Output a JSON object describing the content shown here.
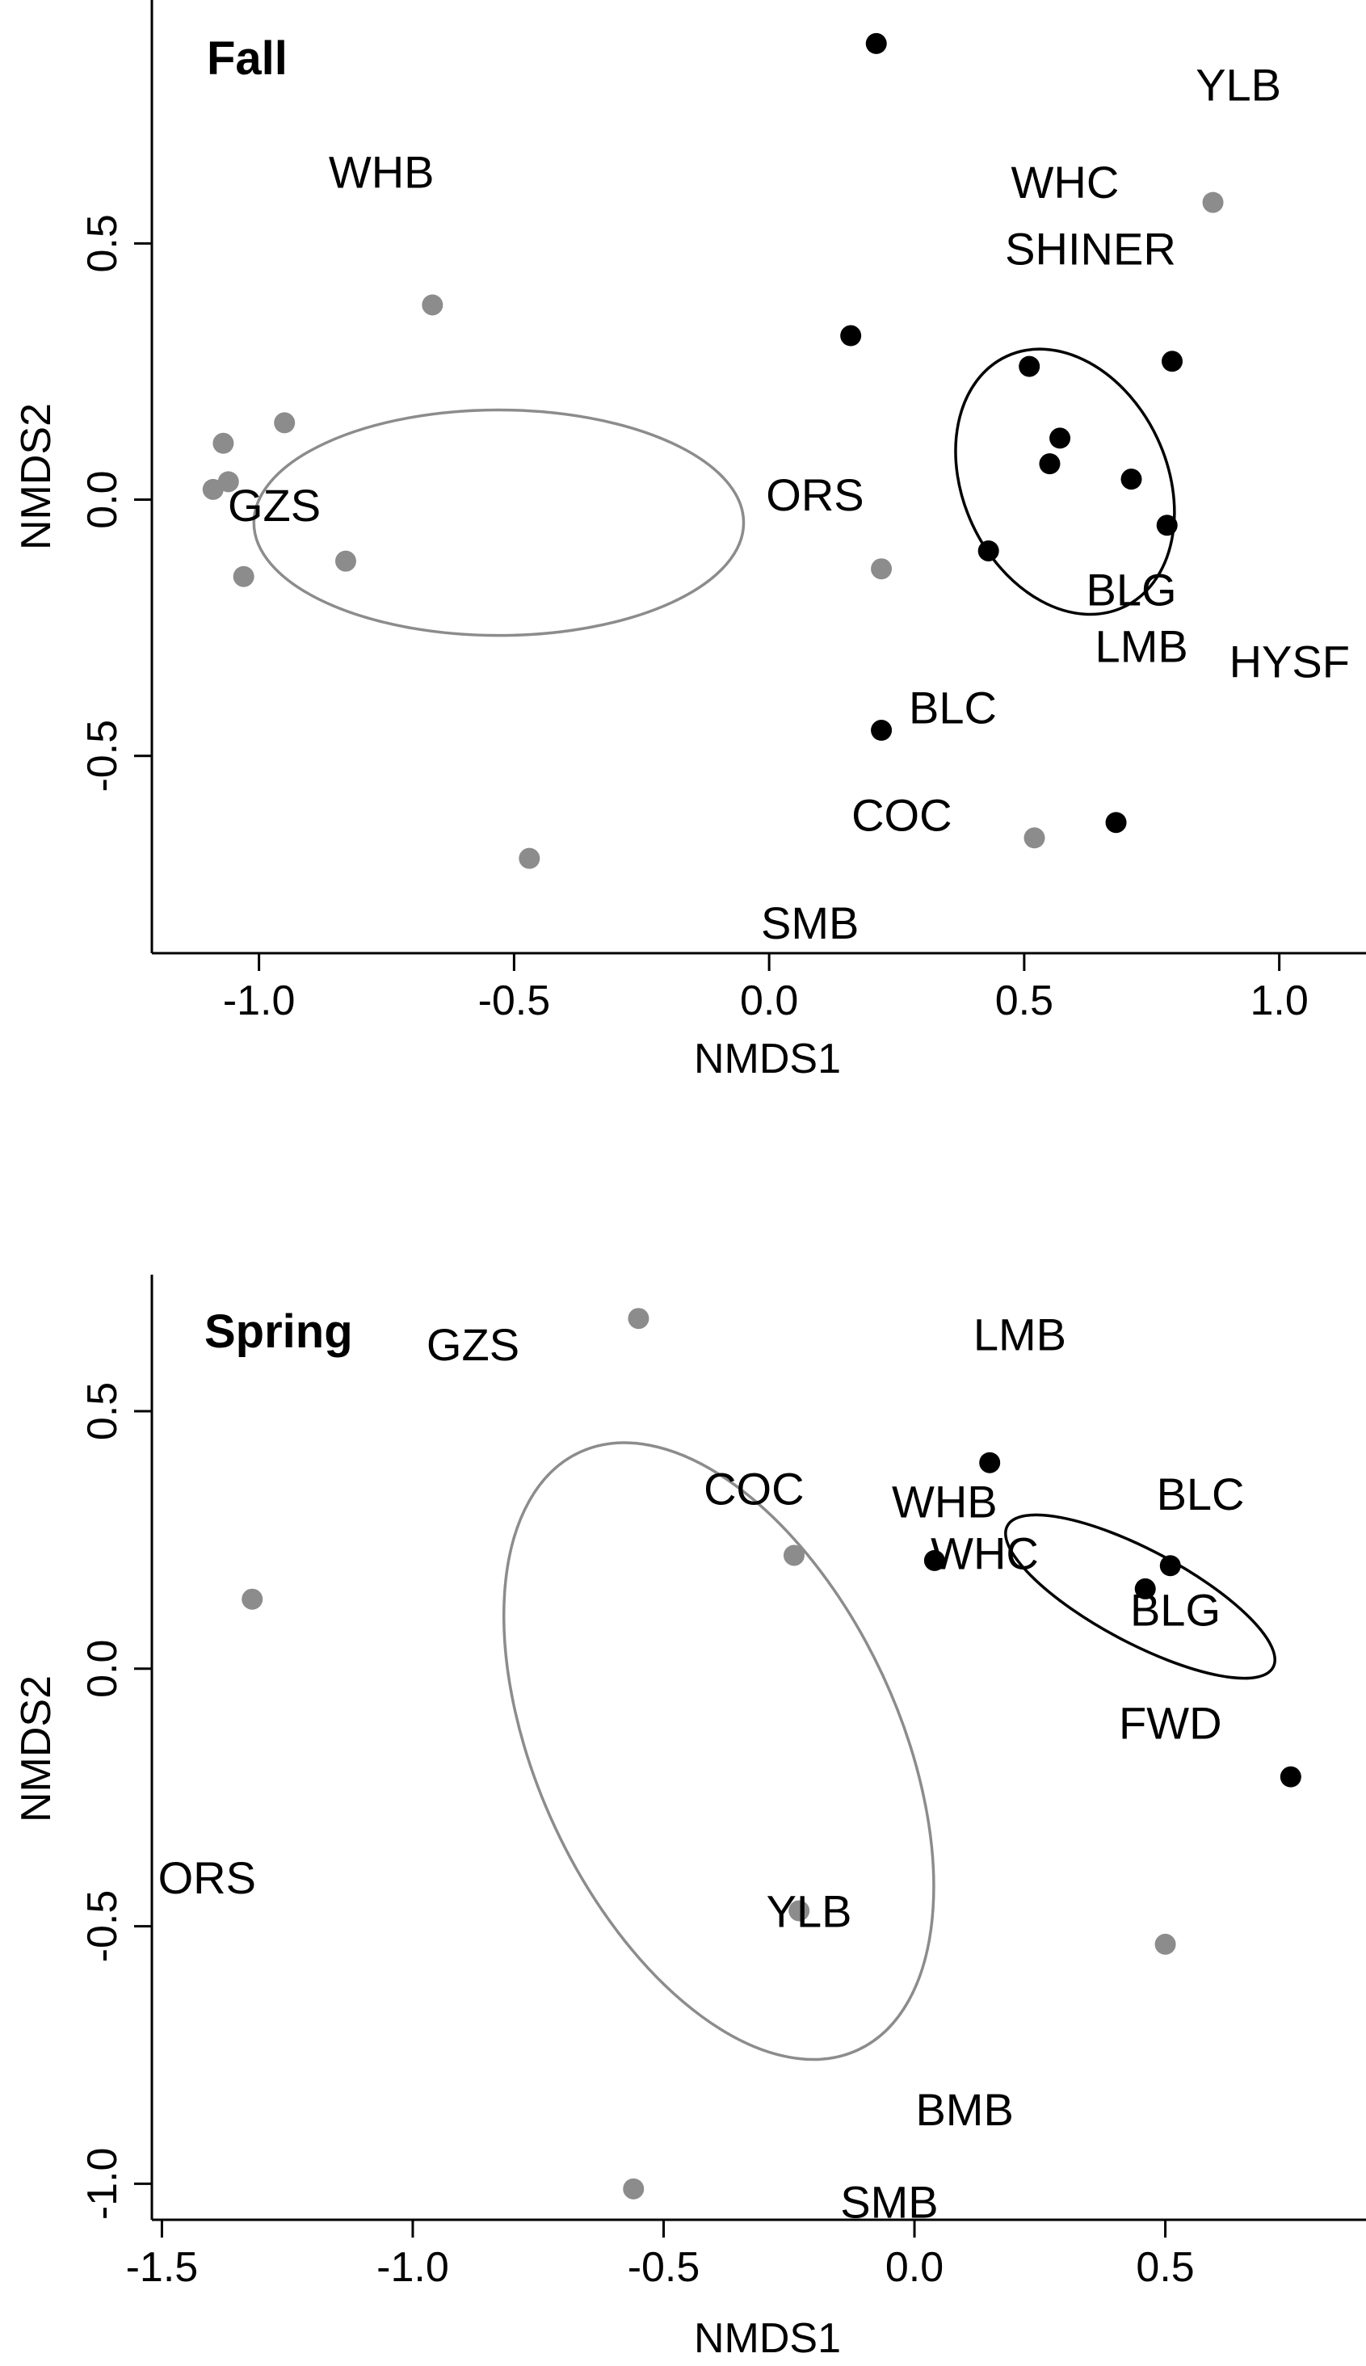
{
  "colors": {
    "black_group": "#000000",
    "gray_group": "#8c8c8c",
    "axis": "#000000"
  },
  "chart_data": [
    {
      "type": "scatter",
      "title": "Fall",
      "xlabel": "NMDS1",
      "ylabel": "NMDS2",
      "xlim": [
        -1.21,
        1.17
      ],
      "ylim": [
        -0.885,
        0.975
      ],
      "xticks": [
        -1.0,
        -0.5,
        0.0,
        0.5,
        1.0
      ],
      "xtick_labels": [
        "-1.0",
        "-0.5",
        "0.0",
        "0.5",
        "1.0"
      ],
      "yticks": [
        -0.5,
        0.0,
        0.5
      ],
      "ytick_labels": [
        "-0.5",
        "0.0",
        "0.5"
      ],
      "grid": false,
      "series": [
        {
          "color": "#000000",
          "points": [
            {
              "x": 0.21,
              "y": 0.89
            },
            {
              "x": 0.16,
              "y": 0.32
            },
            {
              "x": 0.51,
              "y": 0.26
            },
            {
              "x": 0.79,
              "y": 0.27
            },
            {
              "x": 0.57,
              "y": 0.12
            },
            {
              "x": 0.55,
              "y": 0.07
            },
            {
              "x": 0.71,
              "y": 0.04
            },
            {
              "x": 0.78,
              "y": -0.05
            },
            {
              "x": 0.43,
              "y": -0.1
            },
            {
              "x": 0.22,
              "y": -0.45
            },
            {
              "x": 0.68,
              "y": -0.63
            }
          ],
          "ellipse": {
            "cx": 0.58,
            "cy": 0.035,
            "rx": 0.2,
            "ry": 0.27,
            "angle": -25
          }
        },
        {
          "color": "#8c8c8c",
          "points": [
            {
              "x": 0.87,
              "y": 0.58
            },
            {
              "x": -0.66,
              "y": 0.38
            },
            {
              "x": -0.95,
              "y": 0.15
            },
            {
              "x": -1.07,
              "y": 0.11
            },
            {
              "x": -1.06,
              "y": 0.035
            },
            {
              "x": -1.09,
              "y": 0.02
            },
            {
              "x": -0.83,
              "y": -0.12
            },
            {
              "x": -1.03,
              "y": -0.15
            },
            {
              "x": 0.22,
              "y": -0.135
            },
            {
              "x": -0.47,
              "y": -0.7
            },
            {
              "x": 0.52,
              "y": -0.66
            }
          ],
          "ellipse": {
            "cx": -0.53,
            "cy": -0.045,
            "rx": 0.48,
            "ry": 0.22,
            "angle": 0
          }
        }
      ],
      "labels": [
        {
          "text": "YLB",
          "x": 0.92,
          "y": 0.81
        },
        {
          "text": "WHB",
          "x": -0.76,
          "y": 0.64
        },
        {
          "text": "WHC",
          "x": 0.58,
          "y": 0.62
        },
        {
          "text": "SHINER",
          "x": 0.63,
          "y": 0.49
        },
        {
          "text": "ORS",
          "x": 0.09,
          "y": 0.01
        },
        {
          "text": "GZS",
          "x": -0.97,
          "y": -0.01
        },
        {
          "text": "BLG",
          "x": 0.71,
          "y": -0.175
        },
        {
          "text": "LMB",
          "x": 0.73,
          "y": -0.285
        },
        {
          "text": "HYSF",
          "x": 1.02,
          "y": -0.315
        },
        {
          "text": "BLC",
          "x": 0.36,
          "y": -0.405
        },
        {
          "text": "COC",
          "x": 0.26,
          "y": -0.615
        },
        {
          "text": "SMB",
          "x": 0.08,
          "y": -0.825
        }
      ]
    },
    {
      "type": "scatter",
      "title": "Spring",
      "xlabel": "NMDS1",
      "ylabel": "NMDS2",
      "xlim": [
        -1.52,
        0.9
      ],
      "ylim": [
        -1.07,
        0.765
      ],
      "xticks": [
        -1.5,
        -1.0,
        -0.5,
        0.0,
        0.5
      ],
      "xtick_labels": [
        "-1.5",
        "-1.0",
        "-0.5",
        "0.0",
        "0.5"
      ],
      "yticks": [
        -1.0,
        -0.5,
        0.0,
        0.5
      ],
      "ytick_labels": [
        "-1.0",
        "-0.5",
        "0.0",
        "0.5"
      ],
      "grid": false,
      "series": [
        {
          "color": "#000000",
          "points": [
            {
              "x": 0.15,
              "y": 0.4
            },
            {
              "x": 0.04,
              "y": 0.21
            },
            {
              "x": 0.51,
              "y": 0.2
            },
            {
              "x": 0.46,
              "y": 0.155
            },
            {
              "x": 0.75,
              "y": -0.21
            }
          ],
          "ellipse": {
            "cx": 0.45,
            "cy": 0.14,
            "rx": 0.3,
            "ry": 0.09,
            "angle": 28
          }
        },
        {
          "color": "#8c8c8c",
          "points": [
            {
              "x": -0.55,
              "y": 0.68
            },
            {
              "x": -0.24,
              "y": 0.22
            },
            {
              "x": -1.32,
              "y": 0.135
            },
            {
              "x": -0.23,
              "y": -0.47
            },
            {
              "x": 0.5,
              "y": -0.535
            },
            {
              "x": -0.56,
              "y": -1.01
            }
          ],
          "ellipse": {
            "cx": -0.39,
            "cy": -0.16,
            "rx": 0.36,
            "ry": 0.64,
            "angle": -25
          }
        }
      ],
      "labels": [
        {
          "text": "GZS",
          "x": -0.88,
          "y": 0.63
        },
        {
          "text": "LMB",
          "x": 0.21,
          "y": 0.65
        },
        {
          "text": "COC",
          "x": -0.32,
          "y": 0.35
        },
        {
          "text": "BLC",
          "x": 0.57,
          "y": 0.34
        },
        {
          "text": "WHB",
          "x": 0.06,
          "y": 0.325
        },
        {
          "text": "WHC",
          "x": 0.14,
          "y": 0.225
        },
        {
          "text": "BLG",
          "x": 0.52,
          "y": 0.115
        },
        {
          "text": "FWD",
          "x": 0.51,
          "y": -0.105
        },
        {
          "text": "ORS",
          "x": -1.41,
          "y": -0.405
        },
        {
          "text": "YLB",
          "x": -0.21,
          "y": -0.47
        },
        {
          "text": "BMB",
          "x": 0.1,
          "y": -0.855
        },
        {
          "text": "SMB",
          "x": -0.05,
          "y": -1.035
        }
      ]
    }
  ]
}
